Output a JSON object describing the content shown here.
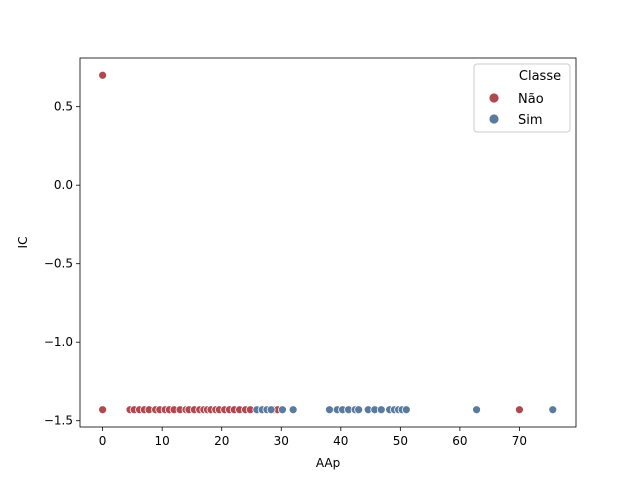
{
  "chart_data": {
    "type": "scatter",
    "xlabel": "AAp",
    "ylabel": "IC",
    "xlim": [
      -3.8,
      79.5
    ],
    "ylim": [
      -1.54,
      0.81
    ],
    "xticks": [
      0,
      10,
      20,
      30,
      40,
      50,
      60,
      70
    ],
    "yticks": [
      -1.5,
      -1.0,
      -0.5,
      0.0,
      0.5
    ],
    "ytick_labels": [
      "−1.5",
      "−1.0",
      "−0.5",
      "0.0",
      "0.5"
    ],
    "grid": false,
    "legend": {
      "title": "Classe",
      "placement": "top-right"
    },
    "series": [
      {
        "name": "Não",
        "color": "#b0484f",
        "points": [
          {
            "x": 0,
            "y": 0.7
          },
          {
            "x": 0,
            "y": -1.43
          },
          {
            "x": 4.6,
            "y": -1.43
          },
          {
            "x": 5.3,
            "y": -1.43
          },
          {
            "x": 6.2,
            "y": -1.43
          },
          {
            "x": 7.0,
            "y": -1.43
          },
          {
            "x": 7.8,
            "y": -1.43
          },
          {
            "x": 8.9,
            "y": -1.43
          },
          {
            "x": 9.6,
            "y": -1.43
          },
          {
            "x": 10.5,
            "y": -1.43
          },
          {
            "x": 11.2,
            "y": -1.43
          },
          {
            "x": 12.0,
            "y": -1.43
          },
          {
            "x": 13.0,
            "y": -1.43
          },
          {
            "x": 14.0,
            "y": -1.43
          },
          {
            "x": 14.5,
            "y": -1.43
          },
          {
            "x": 15.4,
            "y": -1.43
          },
          {
            "x": 16.3,
            "y": -1.43
          },
          {
            "x": 17.0,
            "y": -1.43
          },
          {
            "x": 17.6,
            "y": -1.43
          },
          {
            "x": 18.2,
            "y": -1.43
          },
          {
            "x": 19.0,
            "y": -1.43
          },
          {
            "x": 19.6,
            "y": -1.43
          },
          {
            "x": 20.5,
            "y": -1.43
          },
          {
            "x": 21.3,
            "y": -1.43
          },
          {
            "x": 22.1,
            "y": -1.43
          },
          {
            "x": 23.0,
            "y": -1.43
          },
          {
            "x": 24.0,
            "y": -1.43
          },
          {
            "x": 24.8,
            "y": -1.43
          },
          {
            "x": 28.8,
            "y": -1.43
          },
          {
            "x": 29.4,
            "y": -1.43
          },
          {
            "x": 70.0,
            "y": -1.43
          }
        ]
      },
      {
        "name": "Sim",
        "color": "#5a7a9e",
        "points": [
          {
            "x": 25.9,
            "y": -1.43
          },
          {
            "x": 26.8,
            "y": -1.43
          },
          {
            "x": 27.6,
            "y": -1.43
          },
          {
            "x": 28.3,
            "y": -1.43
          },
          {
            "x": 30.2,
            "y": -1.43
          },
          {
            "x": 32.0,
            "y": -1.43
          },
          {
            "x": 38.1,
            "y": -1.43
          },
          {
            "x": 39.4,
            "y": -1.43
          },
          {
            "x": 40.3,
            "y": -1.43
          },
          {
            "x": 41.3,
            "y": -1.43
          },
          {
            "x": 42.4,
            "y": -1.43
          },
          {
            "x": 43.0,
            "y": -1.43
          },
          {
            "x": 44.6,
            "y": -1.43
          },
          {
            "x": 45.7,
            "y": -1.43
          },
          {
            "x": 46.8,
            "y": -1.43
          },
          {
            "x": 48.2,
            "y": -1.43
          },
          {
            "x": 49.0,
            "y": -1.43
          },
          {
            "x": 49.7,
            "y": -1.43
          },
          {
            "x": 50.3,
            "y": -1.43
          },
          {
            "x": 51.0,
            "y": -1.43
          },
          {
            "x": 62.8,
            "y": -1.43
          },
          {
            "x": 75.6,
            "y": -1.43
          }
        ]
      }
    ]
  }
}
